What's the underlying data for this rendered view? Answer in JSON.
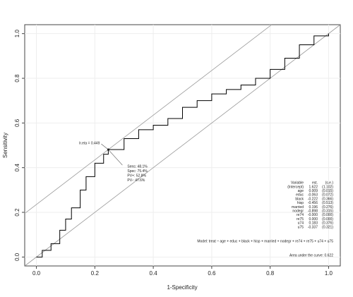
{
  "chart_data": {
    "type": "line",
    "xlabel": "1-Specificity",
    "ylabel": "Sensitivity",
    "xlim": [
      -0.04,
      1.04
    ],
    "ylim": [
      -0.04,
      1.04
    ],
    "xticks": [
      {
        "value": 0,
        "label": "0.0"
      },
      0.2,
      0.4,
      0.6,
      0.8,
      {
        "value": 1,
        "label": "1.0"
      }
    ],
    "yticks": [
      {
        "value": 0,
        "label": "0.0"
      },
      0.2,
      0.4,
      0.6,
      0.8,
      {
        "value": 1,
        "label": "1.0"
      }
    ],
    "grid": true,
    "x": [
      0,
      0.02,
      0.05,
      0.08,
      0.1,
      0.12,
      0.15,
      0.17,
      0.2,
      0.23,
      0.246,
      0.3,
      0.35,
      0.4,
      0.45,
      0.5,
      0.55,
      0.6,
      0.65,
      0.7,
      0.75,
      0.8,
      0.85,
      0.9,
      0.95,
      1
    ],
    "series": [
      {
        "name": "ROC",
        "color": "#000000",
        "values": [
          0,
          0.03,
          0.06,
          0.12,
          0.17,
          0.22,
          0.3,
          0.36,
          0.42,
          0.46,
          0.481,
          0.53,
          0.57,
          0.59,
          0.62,
          0.67,
          0.7,
          0.73,
          0.75,
          0.77,
          0.8,
          0.84,
          0.89,
          0.95,
          0.99,
          1
        ]
      }
    ],
    "optimal_point": {
      "x": 0.246,
      "y": 0.481
    },
    "cutoff_label": "lr.eta = 0.449",
    "point_labels": [
      "Sens: 48.1%",
      "Spec: 75.4%",
      "PV+: 52.8%",
      "PV-: 47.6%"
    ],
    "table": {
      "header": [
        "Variable",
        "est.",
        "(s.e.)"
      ],
      "rows": [
        [
          "(Intercept)",
          "1.622",
          "(1.102)"
        ],
        [
          "age",
          "0.009",
          "(0.015)"
        ],
        [
          "educ",
          "-0.063",
          "(0.072)"
        ],
        [
          "black",
          "-0.222",
          "(0.366)"
        ],
        [
          "hisp",
          "-0.456",
          "(0.513)"
        ],
        [
          "married",
          "0.196",
          "(0.276)"
        ],
        [
          "nodegr",
          "-0.898",
          "(0.315)"
        ],
        [
          "re74",
          "-0.000",
          "(0.000)"
        ],
        [
          "re75",
          "0.000",
          "(0.000)"
        ],
        [
          "u74",
          "0.183",
          "(0.376)"
        ],
        [
          "u75",
          "-0.337",
          "(0.321)"
        ]
      ]
    },
    "model": "Model:  treat ~ age + educ + black + hisp + married + nodegr + re74 + re75 + u74 + u75",
    "auc_label": "Area under the curve: 0.622"
  }
}
